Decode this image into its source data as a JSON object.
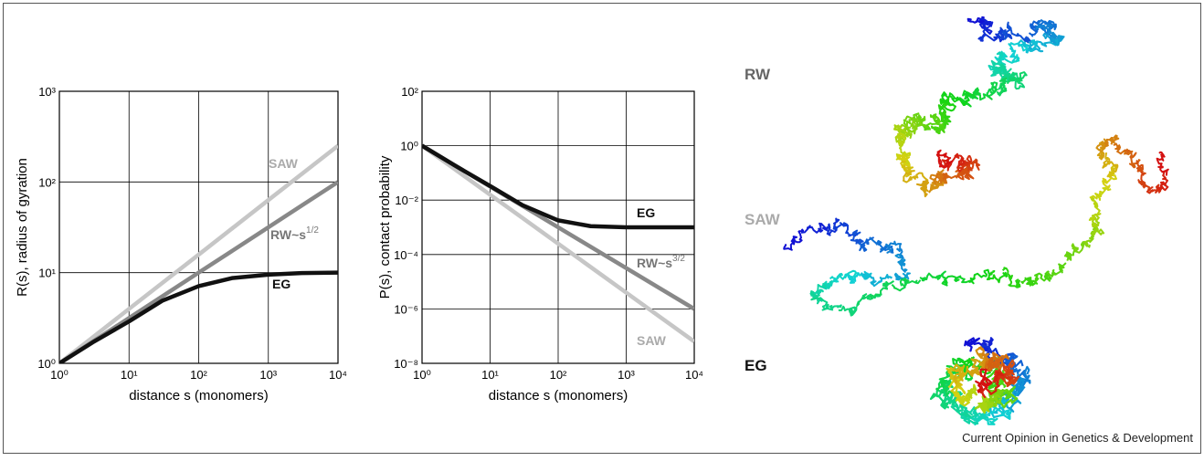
{
  "chart_data": [
    {
      "type": "line",
      "log_x": true,
      "log_y": true,
      "grid": true,
      "xlabel": "distance s (monomers)",
      "ylabel": "R(s), radius of gyration",
      "x": [
        1,
        3,
        10,
        30,
        100,
        300,
        1000,
        3000,
        10000
      ],
      "xlim": [
        1,
        10000
      ],
      "xticks": [
        {
          "value": 1,
          "label": "10⁰"
        },
        {
          "value": 10,
          "label": "10¹"
        },
        {
          "value": 100,
          "label": "10²"
        },
        {
          "value": 1000,
          "label": "10³"
        },
        {
          "value": 10000,
          "label": "10⁴"
        }
      ],
      "ylim": [
        1,
        1000
      ],
      "yticks": [
        {
          "value": 1,
          "label": "10⁰"
        },
        {
          "value": 10,
          "label": "10¹"
        },
        {
          "value": 100,
          "label": "10²"
        },
        {
          "value": 1000,
          "label": "10³"
        }
      ],
      "series": [
        {
          "name": "SAW",
          "color": "#c6c6c6",
          "label_color": "#aaaaaa",
          "values": [
            1,
            1.93,
            3.98,
            7.69,
            15.8,
            30.6,
            63.1,
            122,
            251
          ]
        },
        {
          "name": "RW~s",
          "exponent": "1/2",
          "color": "#888888",
          "label_color": "#777777",
          "values": [
            1,
            1.73,
            3.16,
            5.48,
            10,
            17.3,
            31.6,
            54.8,
            100
          ]
        },
        {
          "name": "EG",
          "color": "#111111",
          "label_color": "#111111",
          "values": [
            1,
            1.7,
            2.9,
            4.9,
            7.1,
            8.7,
            9.5,
            9.9,
            10
          ]
        }
      ]
    },
    {
      "type": "line",
      "log_x": true,
      "log_y": true,
      "grid": true,
      "xlabel": "distance s (monomers)",
      "ylabel": "P(s), contact probability",
      "x": [
        1,
        3,
        10,
        30,
        100,
        300,
        1000,
        3000,
        10000
      ],
      "xlim": [
        1,
        10000
      ],
      "xticks": [
        {
          "value": 1,
          "label": "10⁰"
        },
        {
          "value": 10,
          "label": "10¹"
        },
        {
          "value": 100,
          "label": "10²"
        },
        {
          "value": 1000,
          "label": "10³"
        },
        {
          "value": 10000,
          "label": "10⁴"
        }
      ],
      "ylim": [
        1e-08,
        100
      ],
      "yticks": [
        {
          "value": 1e-08,
          "label": "10⁻⁸"
        },
        {
          "value": 1e-06,
          "label": "10⁻⁶"
        },
        {
          "value": 0.0001,
          "label": "10⁻⁴"
        },
        {
          "value": 0.01,
          "label": "10⁻²"
        },
        {
          "value": 1,
          "label": "10⁰"
        },
        {
          "value": 100,
          "label": "10²"
        }
      ],
      "series": [
        {
          "name": "SAW",
          "color": "#c6c6c6",
          "label_color": "#aaaaaa",
          "values": [
            1,
            0.138,
            0.0158,
            0.00219,
            0.000251,
            3.47e-05,
            3.98e-06,
            5.5e-07,
            6.31e-08
          ]
        },
        {
          "name": "RW~s",
          "exponent": "3/2",
          "color": "#888888",
          "label_color": "#777777",
          "values": [
            1,
            0.192,
            0.0316,
            0.00609,
            0.001,
            0.000192,
            3.16e-05,
            6.09e-06,
            1e-06
          ]
        },
        {
          "name": "EG",
          "color": "#111111",
          "label_color": "#111111",
          "values": [
            1,
            0.19,
            0.033,
            0.0065,
            0.0018,
            0.0011,
            0.001,
            0.001,
            0.001
          ]
        }
      ]
    }
  ],
  "figure": {
    "labels": [
      "RW",
      "SAW",
      "EG"
    ],
    "credit": "Current Opinion in Genetics & Development"
  }
}
